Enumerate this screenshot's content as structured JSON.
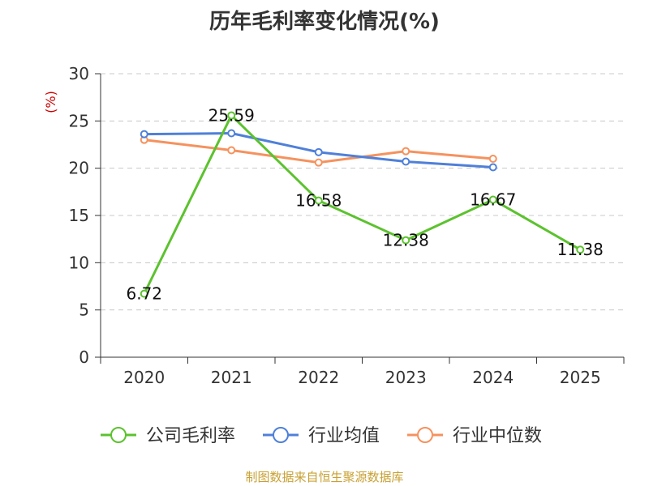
{
  "chart_data": {
    "type": "line",
    "title": "历年毛利率变化情况(%)",
    "ylabel": "(%)",
    "categories": [
      "2020",
      "2021",
      "2022",
      "2023",
      "2024",
      "2025"
    ],
    "ylim": [
      0,
      30
    ],
    "yticks": [
      0,
      5,
      10,
      15,
      20,
      25,
      30
    ],
    "grid": true,
    "legend_position": "bottom",
    "series": [
      {
        "name": "公司毛利率",
        "color": "#5cc22e",
        "values": [
          6.72,
          25.59,
          16.58,
          12.38,
          16.67,
          11.38
        ],
        "labels": [
          "6.72",
          "25.59",
          "16.58",
          "12.38",
          "16.67",
          "11.38"
        ]
      },
      {
        "name": "行业均值",
        "color": "#4f80d9",
        "values": [
          23.6,
          23.7,
          21.7,
          20.7,
          20.1,
          null
        ]
      },
      {
        "name": "行业中位数",
        "color": "#f5925e",
        "values": [
          23.0,
          21.9,
          20.6,
          21.8,
          21.0,
          null
        ]
      }
    ]
  },
  "colors": {
    "unit_label": "#cc0000",
    "grid": "#c8c8c8",
    "axis": "#333333"
  },
  "source": "制图数据来自恒生聚源数据库"
}
